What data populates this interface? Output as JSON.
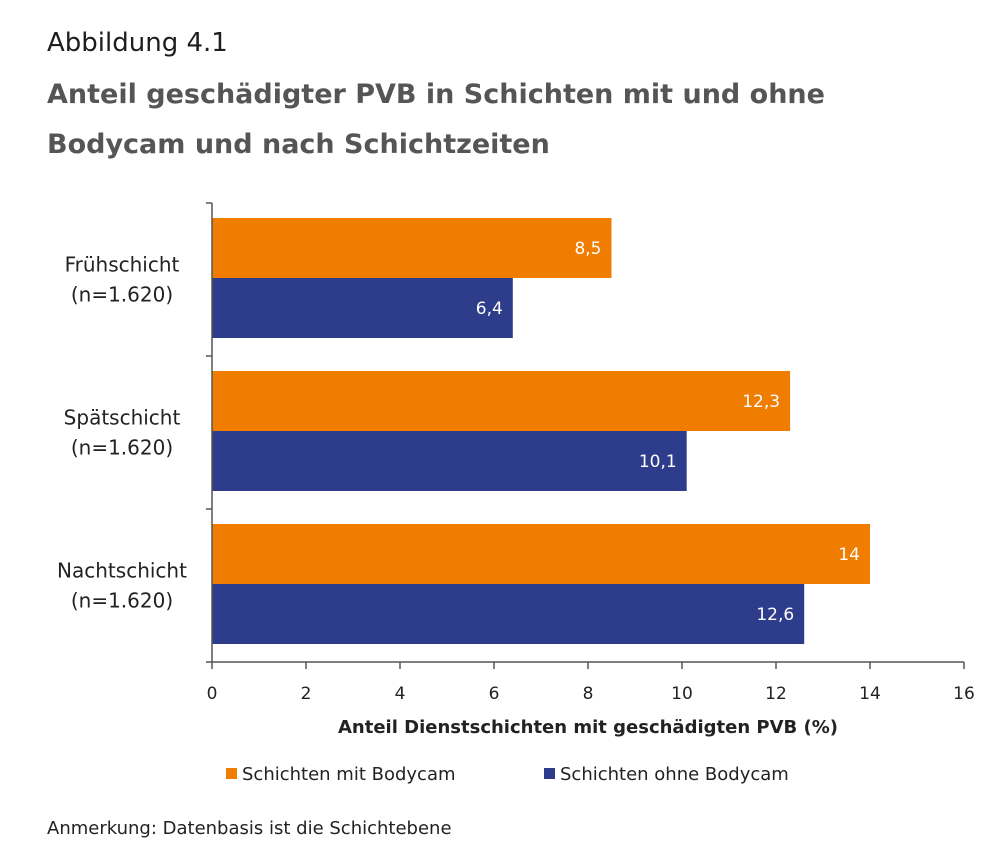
{
  "figure_label": "Abbildung 4.1",
  "note": "Anmerkung: Datenbasis ist die Schichtebene",
  "colors": {
    "with_bodycam": "#f07c00",
    "without_bodycam": "#2e3d8b",
    "axis": "#555555"
  },
  "chart_data": {
    "type": "bar",
    "orientation": "horizontal",
    "title": "Anteil geschädigter PVB in Schichten mit und ohne Bodycam und nach Schichtzeiten",
    "categories": [
      [
        "Frühschicht",
        "(n=1.620)"
      ],
      [
        "Spätschicht",
        "(n=1.620)"
      ],
      [
        "Nachtschicht",
        "(n=1.620)"
      ]
    ],
    "series": [
      {
        "name": "Schichten mit Bodycam",
        "values": [
          8.5,
          12.3,
          14
        ],
        "labels": [
          "8,5",
          "12,3",
          "14"
        ]
      },
      {
        "name": "Schichten ohne Bodycam",
        "values": [
          6.4,
          10.1,
          12.6
        ],
        "labels": [
          "6,4",
          "10,1",
          "12,6"
        ]
      }
    ],
    "xlabel": "Anteil Dienstschichten mit geschädigten PVB (%)",
    "xlim": [
      0,
      16
    ],
    "xticks": [
      0,
      2,
      4,
      6,
      8,
      10,
      12,
      14,
      16
    ],
    "grid": false,
    "legend": "bottom"
  }
}
